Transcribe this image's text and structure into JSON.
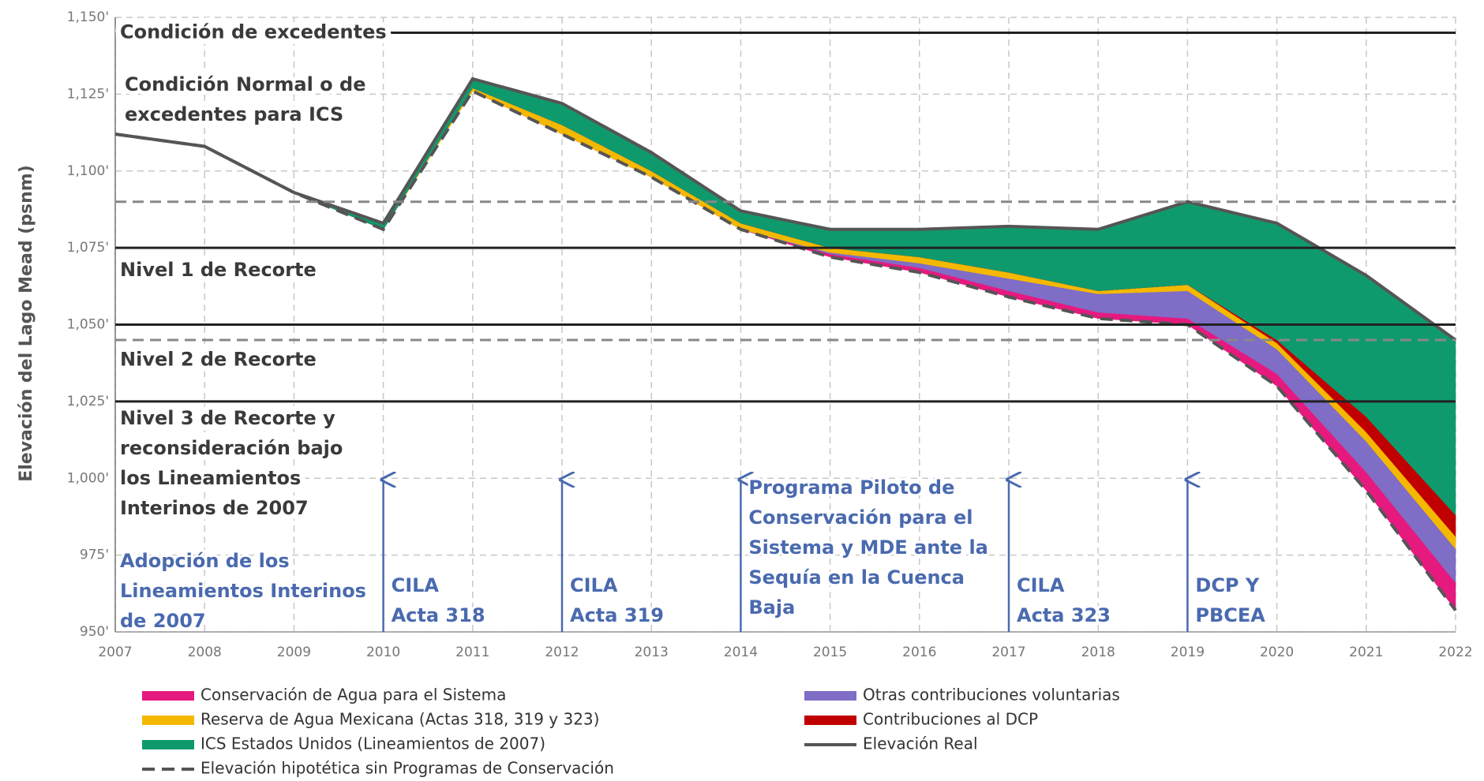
{
  "chart_data": {
    "type": "area",
    "y_label": "Elevación del Lago Mead (psnm)",
    "x": [
      2007,
      2008,
      2009,
      2010,
      2011,
      2012,
      2013,
      2014,
      2015,
      2016,
      2017,
      2018,
      2019,
      2020,
      2021,
      2022
    ],
    "xlim": [
      2007,
      2022
    ],
    "xticks": [
      2007,
      2008,
      2009,
      2010,
      2011,
      2012,
      2013,
      2014,
      2015,
      2016,
      2017,
      2018,
      2019,
      2020,
      2021,
      2022
    ],
    "ylim": [
      950,
      1150
    ],
    "yticks": [
      {
        "value": 950,
        "label": "950'"
      },
      {
        "value": 975,
        "label": "975'"
      },
      {
        "value": 1000,
        "label": "1,000'"
      },
      {
        "value": 1025,
        "label": "1,025'"
      },
      {
        "value": 1050,
        "label": "1,050'"
      },
      {
        "value": 1075,
        "label": "1,075'"
      },
      {
        "value": 1100,
        "label": "1,100'"
      },
      {
        "value": 1125,
        "label": "1,125'"
      },
      {
        "value": 1150,
        "label": "1,150'"
      }
    ],
    "grid": true,
    "series": [
      {
        "name": "Elevación hipotética sin Programas de Conservación",
        "style": "dashed",
        "color": "#555555",
        "values": [
          1112,
          1108,
          1093,
          1081,
          1126,
          1112,
          1098,
          1081,
          1072,
          1067,
          1059,
          1052,
          1050,
          1030,
          996,
          957
        ]
      },
      {
        "name": "Conservación de Agua para el Sistema",
        "style": "area",
        "color": "#e6197f",
        "values": [
          0,
          0,
          0,
          0,
          0,
          0,
          0,
          0,
          1,
          1.5,
          2,
          2,
          2,
          4,
          6,
          9
        ]
      },
      {
        "name": "Otras contribuciones voluntarias",
        "style": "area",
        "color": "#7f6dc6",
        "values": [
          0,
          0,
          0,
          0,
          0,
          0,
          0,
          0,
          0.5,
          1.5,
          4,
          6,
          9,
          8,
          10,
          11
        ]
      },
      {
        "name": "Reserva de Agua Mexicana (Actas 318, 319 y 323)",
        "style": "area",
        "color": "#f5b800",
        "values": [
          0,
          0,
          0,
          0,
          1,
          3,
          2,
          2,
          1.5,
          2,
          2,
          1,
          2,
          2,
          3,
          4
        ]
      },
      {
        "name": "Contribuciones al DCP",
        "style": "area",
        "color": "#c00000",
        "values": [
          0,
          0,
          0,
          0,
          0,
          0,
          0,
          0,
          0,
          0,
          0,
          0,
          0,
          1,
          5,
          7
        ]
      },
      {
        "name": "ICS Estados Unidos (Lineamientos de 2007)",
        "style": "area",
        "color": "#0f9a6e",
        "values": [
          0,
          0,
          0,
          2,
          3,
          7,
          6,
          4,
          6,
          9,
          15,
          20,
          27,
          38,
          46,
          57
        ]
      },
      {
        "name": "Elevación Real",
        "style": "solid",
        "color": "#555555",
        "values": [
          1112,
          1108,
          1093,
          1083,
          1130,
          1122,
          1106,
          1087,
          1081,
          1081,
          1082,
          1081,
          1090,
          1083,
          1066,
          1045
        ]
      }
    ],
    "levels": [
      {
        "value": 1145,
        "lines": [
          "Condición de excedentes"
        ]
      },
      {
        "value": 1075,
        "lines": [
          "Nivel 1 de Recorte"
        ]
      },
      {
        "value": 1050,
        "lines": [
          "Nivel 2 de Recorte"
        ]
      },
      {
        "value": 1025,
        "lines": [
          "Nivel 3 de Recorte y",
          "reconsideración bajo",
          "los Lineamientos",
          "Interinos de 2007"
        ]
      }
    ],
    "dashed_levels": [
      1090,
      1045
    ],
    "notes": [
      {
        "lines": [
          "Condición Normal o de",
          "excedentes para ICS"
        ]
      }
    ],
    "events": [
      {
        "x": 2007,
        "arrow": false,
        "lines": [
          "Adopción de los",
          "Lineamientos Interinos",
          "de 2007"
        ]
      },
      {
        "x": 2010,
        "arrow": true,
        "lines": [
          "CILA",
          "Acta 318"
        ]
      },
      {
        "x": 2012,
        "arrow": true,
        "lines": [
          "CILA",
          "Acta 319"
        ]
      },
      {
        "x": 2014,
        "arrow": true,
        "lines": [
          "Programa Piloto de",
          "Conservación para el",
          "Sistema y MDE ante la",
          "Sequía en la Cuenca",
          "Baja"
        ]
      },
      {
        "x": 2017,
        "arrow": true,
        "lines": [
          "CILA",
          "Acta 323"
        ]
      },
      {
        "x": 2019,
        "arrow": true,
        "lines": [
          "DCP Y",
          "PBCEA"
        ]
      }
    ]
  }
}
